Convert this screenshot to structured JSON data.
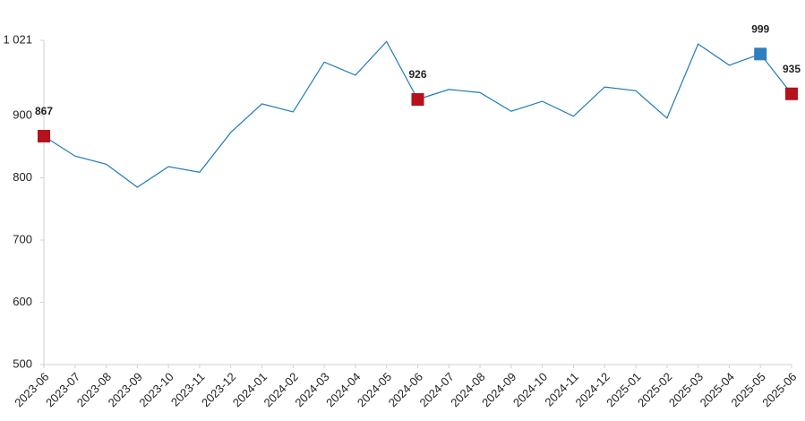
{
  "chart_data": {
    "type": "line",
    "categories": [
      "2023-06",
      "2023-07",
      "2023-08",
      "2023-09",
      "2023-10",
      "2023-11",
      "2023-12",
      "2024-01",
      "2024-02",
      "2024-03",
      "2024-04",
      "2024-05",
      "2024-06",
      "2024-07",
      "2024-08",
      "2024-09",
      "2024-10",
      "2024-11",
      "2024-12",
      "2025-01",
      "2025-02",
      "2025-03",
      "2025-04",
      "2025-05",
      "2025-06"
    ],
    "series": [
      {
        "color": "#1f7ab8",
        "values": [
          867,
          835,
          822,
          785,
          818,
          809,
          873,
          919,
          906,
          986,
          965,
          1019,
          926,
          942,
          937,
          907,
          923,
          899,
          946,
          940,
          896,
          1015,
          981,
          999,
          935
        ]
      }
    ],
    "highlights": [
      {
        "index": 0,
        "color": "#b5121b"
      },
      {
        "index": 12,
        "color": "#b5121b"
      },
      {
        "index": 23,
        "color": "#2e7fc0"
      },
      {
        "index": 24,
        "color": "#b5121b"
      }
    ],
    "ylim": [
      500,
      1021
    ],
    "yticks": [
      500,
      600,
      700,
      800,
      900,
      {
        "value": 1021,
        "label": "1 021"
      }
    ],
    "grid": false
  }
}
